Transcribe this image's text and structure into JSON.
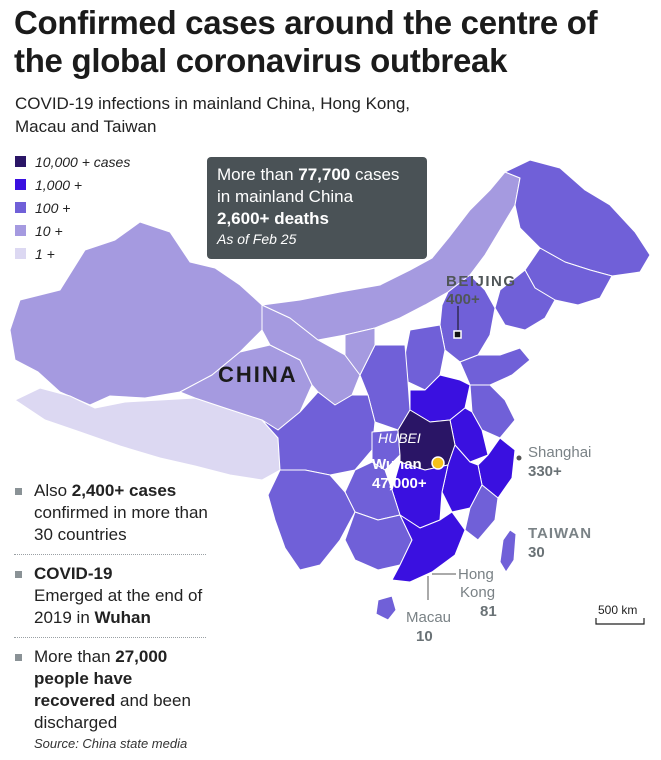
{
  "title": "Confirmed cases around the centre of the global coronavirus outbreak",
  "subtitle": "COVID-19 infections in mainland China, Hong Kong, Macau and Taiwan",
  "legend": [
    {
      "label": "10,000 + cases",
      "color": "#2a1566"
    },
    {
      "label": "1,000 +",
      "color": "#3a10e0"
    },
    {
      "label": "100 +",
      "color": "#7060d8"
    },
    {
      "label": "10 +",
      "color": "#a59ae0"
    },
    {
      "label": "1 +",
      "color": "#dcd8f2"
    }
  ],
  "callout": {
    "line1_pre": "More than ",
    "line1_num": "77,700",
    "line1_post": " cases",
    "line2": "in mainland China",
    "deaths": "2,600+ deaths",
    "asof": "As of Feb 25"
  },
  "labels": {
    "china": "CHINA",
    "beijing": "BEIJING",
    "beijing_count": "400+",
    "hubei": "HUBEI",
    "wuhan": "Wuhan",
    "wuhan_count": "47,000+",
    "shanghai": "Shanghai",
    "shanghai_count": "330+",
    "taiwan": "TAIWAN",
    "taiwan_count": "30",
    "hongkong_1": "Hong",
    "hongkong_2": "Kong",
    "hongkong_count": "81",
    "macau": "Macau",
    "macau_count": "10",
    "scale": "500 km"
  },
  "bullets": {
    "b1_pre": "Also ",
    "b1_bold": "2,400+ cases",
    "b1_post": " confirmed in more than 30 countries",
    "b2_bold": "COVID-19",
    "b2_mid": "Emerged at the end of 2019 in ",
    "b2_bold2": "Wuhan",
    "b3_pre": "More than ",
    "b3_bold": "27,000 people have recovered",
    "b3_post": " and been discharged"
  },
  "source": "Source: China state media",
  "colors": {
    "c10000": "#2a1566",
    "c1000": "#3a10e0",
    "c100": "#7060d8",
    "c10": "#a59ae0",
    "c1": "#dcd8f2",
    "label_gray": "#7a8286"
  }
}
